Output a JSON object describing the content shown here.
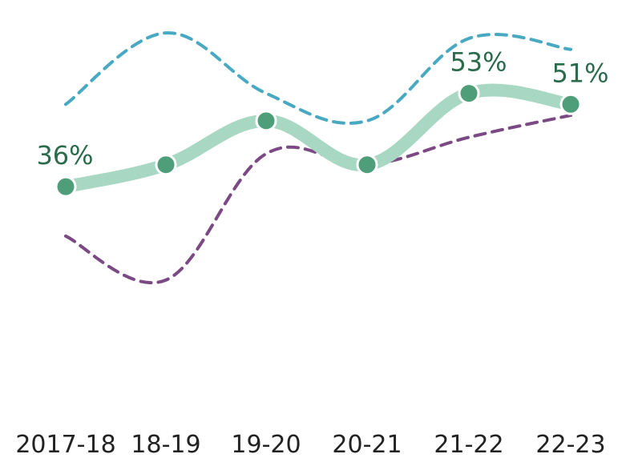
{
  "chart_data": {
    "type": "line",
    "categories": [
      "2017-18",
      "18-19",
      "19-20",
      "20-21",
      "21-22",
      "22-23"
    ],
    "series": [
      {
        "values": [
          36,
          40,
          48,
          40,
          53,
          51
        ],
        "style": "solid-thick-with-markers",
        "color": "#a8d8c3",
        "marker_color": "#4e9e79"
      },
      {
        "values": [
          51,
          64,
          53,
          48,
          63,
          61
        ],
        "style": "dashed",
        "color": "#4aa9c2"
      },
      {
        "values": [
          27,
          19,
          42,
          40,
          45,
          49
        ],
        "style": "dashed",
        "color": "#7b4a84"
      }
    ],
    "data_labels": [
      {
        "index": 0,
        "text": "36%"
      },
      {
        "index": 4,
        "text": "53%"
      },
      {
        "index": 5,
        "text": "51%"
      }
    ],
    "label_color": "#2a6b4c",
    "ylim": [
      0,
      70
    ],
    "grid": false,
    "legend": "none"
  }
}
